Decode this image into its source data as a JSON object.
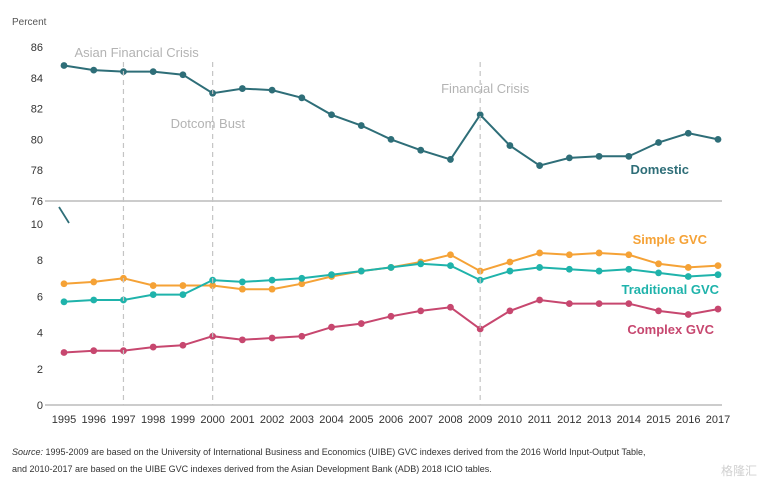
{
  "chart_data": {
    "type": "line",
    "unit_label": "Percent",
    "x": [
      "1995",
      "1996",
      "1997",
      "1998",
      "1999",
      "2000",
      "2001",
      "2002",
      "2003",
      "2004",
      "2005",
      "2006",
      "2007",
      "2008",
      "2009",
      "2010",
      "2011",
      "2012",
      "2013",
      "2014",
      "2015",
      "2016",
      "2017"
    ],
    "panels": [
      {
        "ylim": [
          76,
          86
        ],
        "yticks": [
          "76",
          "78",
          "80",
          "82",
          "84",
          "86"
        ],
        "series": [
          {
            "name": "Domestic",
            "color": "#2e6e78",
            "values": [
              84.8,
              84.5,
              84.4,
              84.4,
              84.2,
              83.0,
              83.3,
              83.2,
              82.7,
              81.6,
              80.9,
              80.0,
              79.3,
              78.7,
              81.6,
              79.6,
              78.3,
              78.8,
              78.9,
              78.9,
              79.8,
              80.4,
              80.0
            ]
          }
        ],
        "annotations": [
          {
            "text": "Asian Financial Crisis",
            "year": "1997"
          },
          {
            "text": "Dotcom Bust",
            "year": "2000"
          },
          {
            "text": "Financial Crisis",
            "year": "2009"
          }
        ]
      },
      {
        "ylim": [
          0,
          10
        ],
        "yticks": [
          "0",
          "2",
          "4",
          "6",
          "8",
          "10"
        ],
        "series": [
          {
            "name": "Simple GVC",
            "color": "#f5a236",
            "values": [
              6.7,
              6.8,
              7.0,
              6.6,
              6.6,
              6.6,
              6.4,
              6.4,
              6.7,
              7.1,
              7.4,
              7.6,
              7.9,
              8.3,
              7.4,
              7.9,
              8.4,
              8.3,
              8.4,
              8.3,
              7.8,
              7.6,
              7.7
            ]
          },
          {
            "name": "Traditional GVC",
            "color": "#1fb3ab",
            "values": [
              5.7,
              5.8,
              5.8,
              6.1,
              6.1,
              6.9,
              6.8,
              6.9,
              7.0,
              7.2,
              7.4,
              7.6,
              7.8,
              7.7,
              6.9,
              7.4,
              7.6,
              7.5,
              7.4,
              7.5,
              7.3,
              7.1,
              7.2
            ]
          },
          {
            "name": "Complex GVC",
            "color": "#c7476f",
            "values": [
              2.9,
              3.0,
              3.0,
              3.2,
              3.3,
              3.8,
              3.6,
              3.7,
              3.8,
              4.3,
              4.5,
              4.9,
              5.2,
              5.4,
              4.2,
              5.2,
              5.8,
              5.6,
              5.6,
              5.6,
              5.2,
              5.0,
              5.3
            ]
          }
        ]
      }
    ],
    "grid": false,
    "legend": "inline labels"
  },
  "source_note": {
    "label": "Source:",
    "line1": " 1995-2009 are based on the University of International Business and Economics (UIBE) GVC indexes derived from the 2016 World Input-Output Table,",
    "line2": "and 2010-2017 are based on the UIBE GVC indexes derived from the Asian Development Bank (ADB) 2018 ICIO tables."
  },
  "watermark": "格隆汇"
}
